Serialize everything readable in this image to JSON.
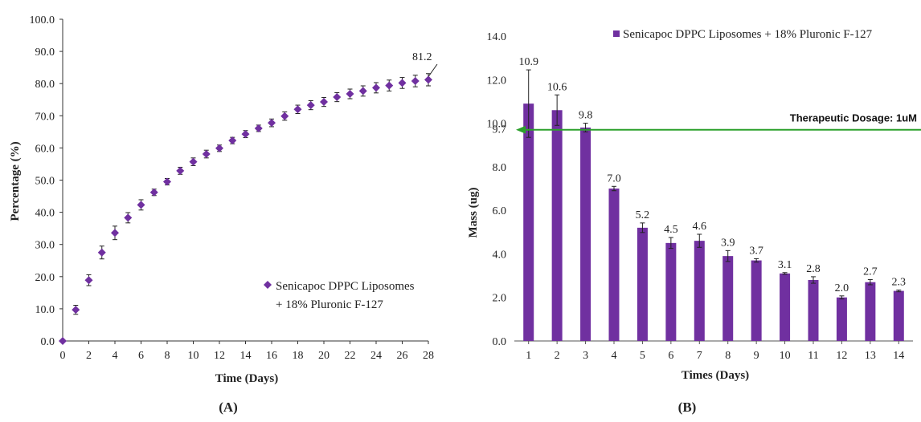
{
  "chart_data": [
    {
      "type": "scatter",
      "panel_label": "(A)",
      "xlabel": "Time (Days)",
      "ylabel": "Percentage (%)",
      "xlim": [
        0,
        28
      ],
      "ylim": [
        0,
        100
      ],
      "x_ticks": [
        "0",
        "2",
        "4",
        "6",
        "8",
        "10",
        "12",
        "14",
        "16",
        "18",
        "20",
        "22",
        "24",
        "26",
        "28"
      ],
      "y_ticks": [
        "0.0",
        "10.0",
        "20.0",
        "30.0",
        "40.0",
        "50.0",
        "60.0",
        "70.0",
        "80.0",
        "90.0",
        "100.0"
      ],
      "legend": "top-right inside lower area",
      "legend_lines": [
        "Senicapoc DPPC Liposomes",
        "+ 18% Pluronic F-127"
      ],
      "marker_color": "#7030a0",
      "series": [
        {
          "name": "Senicapoc DPPC Liposomes + 18% Pluronic F-127",
          "x": [
            0,
            1,
            2,
            3,
            4,
            5,
            6,
            7,
            8,
            9,
            10,
            11,
            12,
            13,
            14,
            15,
            16,
            17,
            18,
            19,
            20,
            21,
            22,
            23,
            24,
            25,
            26,
            27,
            28
          ],
          "y": [
            0,
            9.7,
            18.9,
            27.5,
            33.6,
            38.3,
            42.3,
            46.2,
            49.5,
            52.9,
            55.7,
            58.1,
            59.9,
            62.3,
            64.3,
            66.1,
            67.8,
            69.9,
            72.0,
            73.3,
            74.3,
            75.8,
            76.8,
            77.7,
            78.7,
            79.4,
            80.2,
            80.8,
            81.2
          ],
          "error": [
            0,
            1.4,
            1.7,
            2.0,
            2.1,
            1.6,
            1.6,
            1.0,
            1.0,
            1.1,
            1.2,
            1.2,
            1.0,
            1.0,
            1.1,
            1.0,
            1.2,
            1.3,
            1.3,
            1.4,
            1.4,
            1.4,
            1.5,
            1.6,
            1.6,
            1.7,
            1.7,
            1.8,
            1.9
          ]
        }
      ],
      "annotation": "81.2"
    },
    {
      "type": "bar",
      "panel_label": "(B)",
      "xlabel": "Times (Days)",
      "ylabel": "Mass (ug)",
      "ylim": [
        0,
        14
      ],
      "categories": [
        "1",
        "2",
        "3",
        "4",
        "5",
        "6",
        "7",
        "8",
        "9",
        "10",
        "11",
        "12",
        "13",
        "14"
      ],
      "y_ticks": [
        "0.0",
        "2.0",
        "4.0",
        "6.0",
        "8.0",
        "10.0",
        "12.0",
        "14.0"
      ],
      "legend": "top-right",
      "bar_color": "#7030a0",
      "series": [
        {
          "name": "Senicapoc DPPC Liposomes + 18% Pluronic F-127",
          "values": [
            10.9,
            10.6,
            9.8,
            7.0,
            5.2,
            4.5,
            4.6,
            3.9,
            3.7,
            3.1,
            2.8,
            2.0,
            2.7,
            2.3
          ],
          "error": [
            1.55,
            0.7,
            0.2,
            0.1,
            0.22,
            0.25,
            0.3,
            0.25,
            0.08,
            0.04,
            0.15,
            0.07,
            0.12,
            0.04
          ]
        }
      ],
      "data_labels": [
        "10.9",
        "10.6",
        "9.8",
        "7.0",
        "5.2",
        "4.5",
        "4.6",
        "3.9",
        "3.7",
        "3.1",
        "2.8",
        "2.0",
        "2.7",
        "2.3"
      ],
      "reference_line": {
        "value": 9.7,
        "label": "Therapeutic Dosage: 1uM",
        "axis_label": "9.7",
        "color": "#2ca02c"
      }
    }
  ]
}
